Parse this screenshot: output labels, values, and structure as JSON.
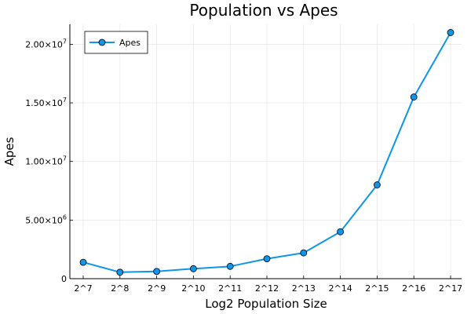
{
  "chart_data": {
    "type": "line",
    "title": "Population vs Apes",
    "xlabel": "Log2 Population Size",
    "ylabel": "Apes",
    "categories": [
      "2^7",
      "2^8",
      "2^9",
      "2^10",
      "2^11",
      "2^12",
      "2^13",
      "2^14",
      "2^15",
      "2^16",
      "2^17"
    ],
    "series": [
      {
        "name": "Apes",
        "values": [
          1400000,
          550000,
          620000,
          850000,
          1050000,
          1700000,
          2200000,
          4000000,
          8000000,
          15500000,
          21000000
        ],
        "color": "#0f96e6"
      }
    ],
    "ylim": [
      0,
      21700000
    ],
    "y_ticks": [
      {
        "value": 0,
        "mantissa": "0",
        "exp": ""
      },
      {
        "value": 5000000,
        "mantissa": "5.00×10",
        "exp": "6"
      },
      {
        "value": 10000000,
        "mantissa": "1.00×10",
        "exp": "7"
      },
      {
        "value": 15000000,
        "mantissa": "1.50×10",
        "exp": "7"
      },
      {
        "value": 20000000,
        "mantissa": "2.00×10",
        "exp": "7"
      }
    ],
    "grid": true,
    "legend_position": "top-left"
  }
}
